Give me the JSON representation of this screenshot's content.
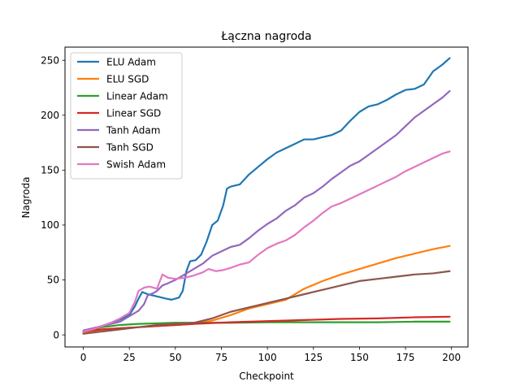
{
  "chart_data": {
    "type": "line",
    "title": "Łączna nagroda",
    "xlabel": "Checkpoint",
    "ylabel": "Nagroda",
    "xlim": [
      -9.95,
      208.95
    ],
    "ylim": [
      -11.0,
      262.0
    ],
    "xticks": [
      0,
      25,
      50,
      75,
      100,
      125,
      150,
      175,
      200
    ],
    "yticks": [
      0,
      50,
      100,
      150,
      200,
      250
    ],
    "grid": false,
    "legend_position": "upper left",
    "series": [
      {
        "name": "ELU Adam",
        "color": "#1f77b4",
        "points": [
          [
            0,
            3
          ],
          [
            5,
            5
          ],
          [
            10,
            8
          ],
          [
            15,
            11
          ],
          [
            20,
            14
          ],
          [
            25,
            18
          ],
          [
            28,
            26
          ],
          [
            30,
            33
          ],
          [
            32,
            39
          ],
          [
            35,
            37
          ],
          [
            40,
            35
          ],
          [
            45,
            33
          ],
          [
            48,
            32
          ],
          [
            52,
            34
          ],
          [
            54,
            40
          ],
          [
            56,
            58
          ],
          [
            58,
            67
          ],
          [
            61,
            68
          ],
          [
            64,
            73
          ],
          [
            67,
            85
          ],
          [
            70,
            100
          ],
          [
            73,
            104
          ],
          [
            76,
            118
          ],
          [
            78,
            133
          ],
          [
            80,
            135
          ],
          [
            85,
            137
          ],
          [
            90,
            146
          ],
          [
            95,
            153
          ],
          [
            100,
            160
          ],
          [
            105,
            166
          ],
          [
            110,
            170
          ],
          [
            115,
            174
          ],
          [
            120,
            178
          ],
          [
            125,
            178
          ],
          [
            130,
            180
          ],
          [
            135,
            182
          ],
          [
            140,
            186
          ],
          [
            145,
            195
          ],
          [
            150,
            203
          ],
          [
            155,
            208
          ],
          [
            160,
            210
          ],
          [
            165,
            214
          ],
          [
            170,
            219
          ],
          [
            175,
            223
          ],
          [
            180,
            224
          ],
          [
            185,
            228
          ],
          [
            190,
            240
          ],
          [
            195,
            246
          ],
          [
            199,
            252
          ]
        ]
      },
      {
        "name": "ELU SGD",
        "color": "#ff7f0e",
        "points": [
          [
            0,
            2
          ],
          [
            10,
            4
          ],
          [
            20,
            6
          ],
          [
            30,
            7
          ],
          [
            40,
            8
          ],
          [
            50,
            9
          ],
          [
            60,
            10
          ],
          [
            70,
            13
          ],
          [
            80,
            18
          ],
          [
            90,
            24
          ],
          [
            100,
            28
          ],
          [
            110,
            32
          ],
          [
            120,
            42
          ],
          [
            130,
            49
          ],
          [
            140,
            55
          ],
          [
            150,
            60
          ],
          [
            160,
            65
          ],
          [
            170,
            70
          ],
          [
            180,
            74
          ],
          [
            190,
            78
          ],
          [
            199,
            81
          ]
        ]
      },
      {
        "name": "Linear Adam",
        "color": "#2ca02c",
        "points": [
          [
            0,
            3
          ],
          [
            10,
            7
          ],
          [
            20,
            9
          ],
          [
            30,
            10
          ],
          [
            40,
            10.5
          ],
          [
            50,
            11
          ],
          [
            60,
            11
          ],
          [
            80,
            11
          ],
          [
            100,
            11.5
          ],
          [
            120,
            11.5
          ],
          [
            140,
            11.5
          ],
          [
            160,
            11.5
          ],
          [
            180,
            12
          ],
          [
            199,
            12
          ]
        ]
      },
      {
        "name": "Linear SGD",
        "color": "#d62728",
        "points": [
          [
            0,
            3
          ],
          [
            10,
            5
          ],
          [
            20,
            6
          ],
          [
            30,
            7
          ],
          [
            40,
            8
          ],
          [
            50,
            9
          ],
          [
            60,
            10
          ],
          [
            80,
            11.5
          ],
          [
            100,
            12.5
          ],
          [
            120,
            13.5
          ],
          [
            140,
            14.5
          ],
          [
            160,
            15
          ],
          [
            180,
            16
          ],
          [
            199,
            16.5
          ]
        ]
      },
      {
        "name": "Tanh Adam",
        "color": "#9467bd",
        "points": [
          [
            0,
            4
          ],
          [
            5,
            6
          ],
          [
            10,
            8
          ],
          [
            15,
            10
          ],
          [
            20,
            12
          ],
          [
            25,
            17
          ],
          [
            30,
            22
          ],
          [
            33,
            28
          ],
          [
            35,
            36
          ],
          [
            38,
            38
          ],
          [
            40,
            40
          ],
          [
            43,
            45
          ],
          [
            46,
            47
          ],
          [
            50,
            50
          ],
          [
            55,
            55
          ],
          [
            60,
            60
          ],
          [
            65,
            65
          ],
          [
            70,
            72
          ],
          [
            75,
            76
          ],
          [
            80,
            80
          ],
          [
            85,
            82
          ],
          [
            90,
            88
          ],
          [
            95,
            95
          ],
          [
            100,
            101
          ],
          [
            105,
            106
          ],
          [
            110,
            113
          ],
          [
            115,
            118
          ],
          [
            120,
            125
          ],
          [
            125,
            129
          ],
          [
            130,
            135
          ],
          [
            135,
            142
          ],
          [
            140,
            148
          ],
          [
            145,
            154
          ],
          [
            150,
            158
          ],
          [
            155,
            164
          ],
          [
            160,
            170
          ],
          [
            165,
            176
          ],
          [
            170,
            182
          ],
          [
            175,
            190
          ],
          [
            180,
            198
          ],
          [
            185,
            204
          ],
          [
            190,
            210
          ],
          [
            195,
            216
          ],
          [
            199,
            222
          ]
        ]
      },
      {
        "name": "Tanh SGD",
        "color": "#8c564b",
        "points": [
          [
            0,
            1
          ],
          [
            10,
            3
          ],
          [
            20,
            5
          ],
          [
            30,
            7
          ],
          [
            40,
            9
          ],
          [
            50,
            10
          ],
          [
            60,
            11
          ],
          [
            70,
            15
          ],
          [
            80,
            21
          ],
          [
            90,
            25
          ],
          [
            100,
            29
          ],
          [
            110,
            33
          ],
          [
            120,
            37
          ],
          [
            130,
            41
          ],
          [
            140,
            45
          ],
          [
            150,
            49
          ],
          [
            160,
            51
          ],
          [
            170,
            53
          ],
          [
            180,
            55
          ],
          [
            190,
            56
          ],
          [
            199,
            58
          ]
        ]
      },
      {
        "name": "Swish Adam",
        "color": "#e377c2",
        "points": [
          [
            0,
            3
          ],
          [
            5,
            5
          ],
          [
            10,
            8
          ],
          [
            15,
            11
          ],
          [
            20,
            15
          ],
          [
            25,
            20
          ],
          [
            28,
            30
          ],
          [
            30,
            40
          ],
          [
            33,
            43
          ],
          [
            36,
            44
          ],
          [
            40,
            42
          ],
          [
            43,
            55
          ],
          [
            46,
            52
          ],
          [
            50,
            51
          ],
          [
            55,
            52
          ],
          [
            60,
            54
          ],
          [
            65,
            57
          ],
          [
            68,
            60
          ],
          [
            72,
            58
          ],
          [
            76,
            59
          ],
          [
            80,
            61
          ],
          [
            85,
            64
          ],
          [
            90,
            66
          ],
          [
            95,
            73
          ],
          [
            100,
            79
          ],
          [
            105,
            83
          ],
          [
            110,
            86
          ],
          [
            115,
            91
          ],
          [
            120,
            98
          ],
          [
            125,
            104
          ],
          [
            130,
            111
          ],
          [
            135,
            117
          ],
          [
            140,
            120
          ],
          [
            145,
            124
          ],
          [
            150,
            128
          ],
          [
            155,
            132
          ],
          [
            160,
            136
          ],
          [
            165,
            140
          ],
          [
            170,
            144
          ],
          [
            175,
            149
          ],
          [
            180,
            153
          ],
          [
            185,
            157
          ],
          [
            190,
            161
          ],
          [
            195,
            165
          ],
          [
            199,
            167
          ]
        ]
      }
    ]
  }
}
